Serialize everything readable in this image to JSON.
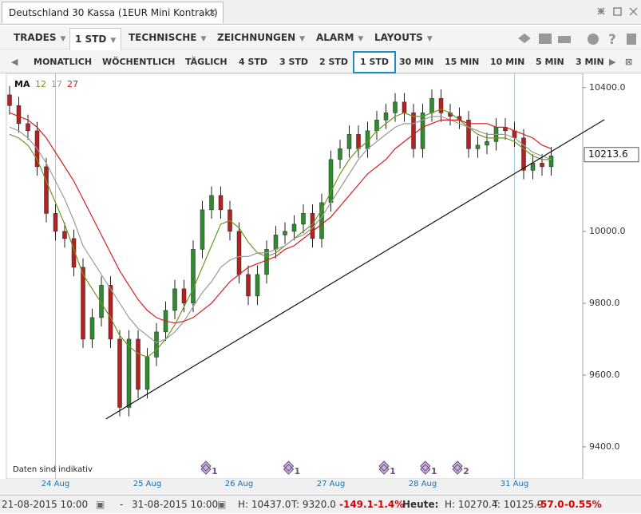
{
  "window": {
    "title": "Deutschland 30 Kassa (1EUR Mini Kontrakt)"
  },
  "menu": [
    "TRADES",
    "1 STD",
    "TECHNISCHE",
    "ZEICHNUNGEN",
    "ALARM",
    "LAYOUTS"
  ],
  "timeframes": {
    "items": [
      "MONATLICH",
      "WÖCHENTLICH",
      "TÄGLICH",
      "4 STD",
      "3 STD",
      "2 STD",
      "1 STD",
      "30 MIN",
      "15 MIN",
      "10 MIN",
      "5 MIN",
      "3 MIN"
    ],
    "selected": 6
  },
  "chart_data": {
    "type": "candlestick",
    "note": "Daten sind indikativ",
    "ma_label": "MA",
    "categories": [
      null,
      null,
      null,
      null,
      null,
      "24 Aug",
      null,
      null,
      null,
      null,
      null,
      null,
      null,
      null,
      null,
      "25 Aug",
      null,
      null,
      null,
      null,
      null,
      null,
      null,
      null,
      null,
      "26 Aug",
      null,
      null,
      null,
      null,
      null,
      null,
      null,
      null,
      null,
      "27 Aug",
      null,
      null,
      null,
      null,
      null,
      null,
      null,
      null,
      null,
      "28 Aug",
      null,
      null,
      null,
      null,
      null,
      null,
      null,
      null,
      null,
      "31 Aug",
      null,
      null,
      null,
      null
    ],
    "open": [
      10380,
      10350,
      10300,
      10280,
      10180,
      10050,
      10000,
      9980,
      9900,
      9700,
      9760,
      9850,
      9700,
      9510,
      9700,
      9560,
      9650,
      9720,
      9780,
      9840,
      9800,
      9950,
      10060,
      10100,
      10060,
      10000,
      9880,
      9820,
      9880,
      9950,
      9990,
      10000,
      10020,
      10050,
      9980,
      10080,
      10200,
      10230,
      10270,
      10230,
      10280,
      10310,
      10330,
      10360,
      10330,
      10230,
      10330,
      10370,
      10330,
      10320,
      10310,
      10230,
      10240,
      10250,
      10290,
      10280,
      10260,
      10170,
      10190,
      10180
    ],
    "high": [
      10405,
      10375,
      10325,
      10305,
      10205,
      10075,
      10025,
      10005,
      9925,
      9785,
      9875,
      9875,
      9725,
      9725,
      9725,
      9675,
      9745,
      9805,
      9865,
      9865,
      9975,
      10085,
      10125,
      10125,
      10085,
      10025,
      9905,
      9905,
      9975,
      10015,
      10025,
      10045,
      10075,
      10075,
      10105,
      10225,
      10255,
      10295,
      10295,
      10305,
      10335,
      10355,
      10385,
      10385,
      10355,
      10355,
      10395,
      10395,
      10355,
      10345,
      10335,
      10265,
      10275,
      10315,
      10315,
      10305,
      10285,
      10215,
      10215,
      10235
    ],
    "low": [
      10325,
      10275,
      10255,
      10155,
      10025,
      9975,
      9955,
      9875,
      9675,
      9675,
      9735,
      9675,
      9485,
      9485,
      9535,
      9535,
      9625,
      9695,
      9755,
      9775,
      9775,
      9925,
      10035,
      10035,
      9975,
      9855,
      9795,
      9795,
      9855,
      9925,
      9965,
      9975,
      9995,
      9955,
      9955,
      10055,
      10175,
      10205,
      10205,
      10205,
      10255,
      10285,
      10305,
      10305,
      10205,
      10205,
      10305,
      10305,
      10295,
      10285,
      10205,
      10205,
      10215,
      10225,
      10255,
      10235,
      10145,
      10145,
      10155,
      10155
    ],
    "close": [
      10350,
      10300,
      10280,
      10180,
      10050,
      10000,
      9980,
      9900,
      9700,
      9760,
      9850,
      9700,
      9510,
      9700,
      9560,
      9650,
      9720,
      9780,
      9840,
      9800,
      9950,
      10060,
      10100,
      10060,
      10000,
      9880,
      9820,
      9880,
      9950,
      9990,
      10000,
      10020,
      10050,
      9980,
      10080,
      10200,
      10230,
      10270,
      10230,
      10280,
      10310,
      10330,
      10360,
      10330,
      10230,
      10330,
      10370,
      10330,
      10320,
      10310,
      10230,
      10240,
      10250,
      10290,
      10280,
      10260,
      10170,
      10190,
      10180,
      10210
    ],
    "up_color": "#2e8b2e",
    "down_color": "#b22222",
    "series": [
      {
        "name": 12,
        "color": "#6a9a1f",
        "values": [
          10270,
          10260,
          10240,
          10200,
          10140,
          10080,
          10020,
          9950,
          9880,
          9840,
          9800,
          9760,
          9710,
          9680,
          9660,
          9650,
          9670,
          9700,
          9740,
          9790,
          9840,
          9900,
          9960,
          10020,
          10030,
          10010,
          9970,
          9940,
          9930,
          9940,
          9960,
          9980,
          10000,
          10020,
          10060,
          10110,
          10160,
          10200,
          10230,
          10250,
          10280,
          10300,
          10320,
          10330,
          10320,
          10320,
          10330,
          10340,
          10330,
          10310,
          10290,
          10270,
          10260,
          10260,
          10260,
          10250,
          10230,
          10210,
          10200,
          10200
        ]
      },
      {
        "name": 17,
        "color": "#9a9a9a",
        "values": [
          10290,
          10280,
          10260,
          10230,
          10190,
          10140,
          10090,
          10030,
          9960,
          9920,
          9880,
          9840,
          9800,
          9760,
          9730,
          9710,
          9690,
          9700,
          9720,
          9750,
          9790,
          9830,
          9860,
          9900,
          9920,
          9930,
          9930,
          9940,
          9940,
          9950,
          9960,
          9980,
          9990,
          10010,
          10040,
          10080,
          10120,
          10160,
          10200,
          10230,
          10250,
          10270,
          10290,
          10300,
          10300,
          10310,
          10320,
          10320,
          10310,
          10300,
          10290,
          10280,
          10270,
          10270,
          10270,
          10260,
          10240,
          10220,
          10210,
          10200
        ]
      },
      {
        "name": 27,
        "color": "#d42020",
        "values": [
          10330,
          10320,
          10310,
          10290,
          10260,
          10220,
          10180,
          10140,
          10090,
          10040,
          9990,
          9940,
          9890,
          9850,
          9810,
          9780,
          9760,
          9750,
          9745,
          9750,
          9760,
          9780,
          9800,
          9830,
          9860,
          9880,
          9900,
          9910,
          9920,
          9930,
          9950,
          9960,
          9980,
          10000,
          10020,
          10040,
          10070,
          10100,
          10130,
          10160,
          10180,
          10200,
          10230,
          10250,
          10270,
          10290,
          10300,
          10310,
          10310,
          10310,
          10300,
          10300,
          10300,
          10290,
          10290,
          10280,
          10270,
          10260,
          10240,
          10230
        ]
      }
    ],
    "trendline": {
      "x": [
        10.5,
        64.8
      ],
      "y": [
        9478,
        10311
      ]
    },
    "last_price": 10213.6,
    "events": [
      {
        "x": 22,
        "count": 1
      },
      {
        "x": 31,
        "count": 1
      },
      {
        "x": 41.4,
        "count": 1
      },
      {
        "x": 45.9,
        "count": 1
      },
      {
        "x": 49.4,
        "count": 2
      }
    ],
    "ylim": [
      9311,
      10433
    ],
    "yticks": [
      {
        "value": 9400,
        "label": "9400.0"
      },
      {
        "value": 9600,
        "label": "9600.0"
      },
      {
        "value": 9800,
        "label": "9800.0"
      },
      {
        "value": 10000,
        "label": "10000.0"
      },
      {
        "value": 10400,
        "label": "10400.0"
      }
    ]
  },
  "footer": {
    "from": "21-08-2015 10:00",
    "sep": "-",
    "to": "31-08-2015 10:00",
    "high": "H: 10437.0",
    "low": "T: 9320.0",
    "change": "-149.1",
    "change_pct": "-1.4%",
    "today_label": "Heute:",
    "today_high": "H: 10270.4",
    "today_low": "T: 10125.9",
    "today_change": "-57.0",
    "today_change_pct": "-0.55%"
  }
}
